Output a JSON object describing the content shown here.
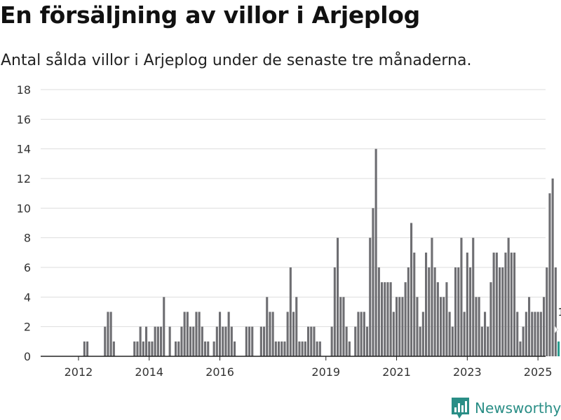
{
  "title": "En försäljning av villor i Arjeplog",
  "subtitle": "Antal sålda villor i Arjeplog under de senaste tre månaderna.",
  "brand": "Newsworthy",
  "colors": {
    "bar": "#6e6e72",
    "highlight": "#2a9d8f",
    "grid": "#dddddd",
    "brand": "#2a8e86"
  },
  "chart_data": {
    "type": "bar",
    "title": "En försäljning av villor i Arjeplog",
    "subtitle": "Antal sålda villor i Arjeplog under de senaste tre månaderna.",
    "x_start": "2011-01",
    "x_end": "2024-12",
    "xtick_labels": [
      "2012",
      "2014",
      "2016",
      "2019",
      "2021",
      "2023",
      "2025"
    ],
    "ytick_labels": [
      "0",
      "2",
      "4",
      "6",
      "8",
      "10",
      "12",
      "14",
      "16",
      "18"
    ],
    "ylim": [
      0,
      18
    ],
    "grid": true,
    "values": [
      0,
      0,
      0,
      0,
      0,
      0,
      0,
      0,
      0,
      0,
      0,
      0,
      0,
      0,
      1,
      1,
      0,
      0,
      0,
      0,
      0,
      2,
      3,
      3,
      1,
      0,
      0,
      0,
      0,
      0,
      0,
      1,
      1,
      2,
      1,
      2,
      1,
      1,
      2,
      2,
      2,
      4,
      0,
      2,
      0,
      1,
      1,
      2,
      3,
      3,
      2,
      2,
      3,
      3,
      2,
      1,
      1,
      0,
      1,
      2,
      3,
      2,
      2,
      3,
      2,
      1,
      0,
      0,
      0,
      2,
      2,
      2,
      0,
      0,
      2,
      2,
      4,
      3,
      3,
      1,
      1,
      1,
      1,
      3,
      6,
      3,
      4,
      1,
      1,
      1,
      2,
      2,
      2,
      1,
      1,
      0,
      0,
      0,
      2,
      6,
      8,
      4,
      4,
      2,
      1,
      0,
      2,
      3,
      3,
      3,
      2,
      8,
      10,
      14,
      6,
      5,
      5,
      5,
      5,
      3,
      4,
      4,
      4,
      5,
      6,
      9,
      7,
      4,
      2,
      3,
      7,
      6,
      8,
      6,
      5,
      4,
      4,
      5,
      3,
      2,
      6,
      6,
      8,
      3,
      7,
      6,
      8,
      4,
      4,
      2,
      3,
      2,
      5,
      7,
      7,
      6,
      6,
      7,
      8,
      7,
      7,
      3,
      1,
      2,
      3,
      4,
      3,
      3,
      3,
      3,
      4,
      6,
      11,
      12,
      6,
      1
    ],
    "highlight_last": true,
    "highlight_label": "1"
  }
}
